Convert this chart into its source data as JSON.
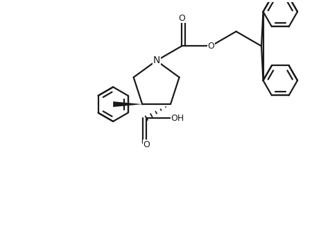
{
  "background_color": "#ffffff",
  "line_color": "#1a1a1a",
  "line_width": 1.6,
  "figsize": [
    4.76,
    3.63
  ],
  "dpi": 100,
  "xlim": [
    0.0,
    9.5
  ],
  "ylim": [
    0.0,
    7.2
  ]
}
